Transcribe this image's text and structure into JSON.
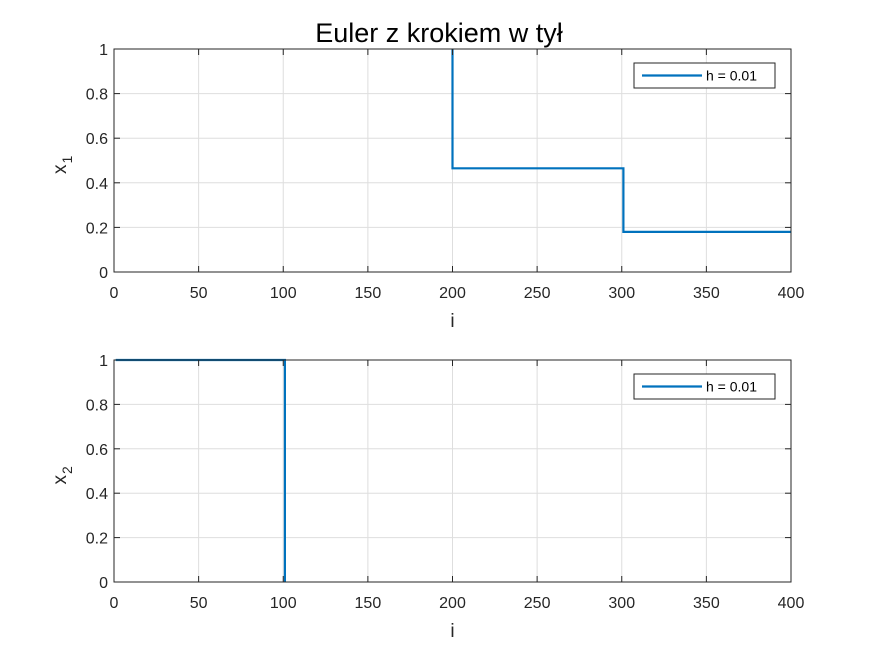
{
  "figure_title": "Euler z krokiem w tył",
  "colors": {
    "series": "#0072BD",
    "grid": "#dedede",
    "axes": "#262626"
  },
  "chart_data": [
    {
      "type": "line",
      "ylabel_main": "x",
      "ylabel_sub": "1",
      "xlabel": "i",
      "xlim": [
        0,
        400
      ],
      "ylim": [
        0,
        1
      ],
      "xticks": [
        0,
        50,
        100,
        150,
        200,
        250,
        300,
        350,
        400
      ],
      "yticks": [
        0,
        0.2,
        0.4,
        0.6,
        0.8,
        1
      ],
      "grid": true,
      "legend_position": "top-right",
      "series": [
        {
          "name": "h = 0.01",
          "x": [
            200,
            200,
            301,
            301,
            400
          ],
          "y": [
            1,
            0.465,
            0.465,
            0.18,
            0.18
          ]
        }
      ]
    },
    {
      "type": "line",
      "ylabel_main": "x",
      "ylabel_sub": "2",
      "xlabel": "i",
      "xlim": [
        0,
        400
      ],
      "ylim": [
        0,
        1
      ],
      "xticks": [
        0,
        50,
        100,
        150,
        200,
        250,
        300,
        350,
        400
      ],
      "yticks": [
        0,
        0.2,
        0.4,
        0.6,
        0.8,
        1
      ],
      "grid": true,
      "legend_position": "top-right",
      "series": [
        {
          "name": "h = 0.01",
          "x": [
            1,
            101,
            101
          ],
          "y": [
            1,
            1,
            0
          ]
        }
      ]
    }
  ]
}
